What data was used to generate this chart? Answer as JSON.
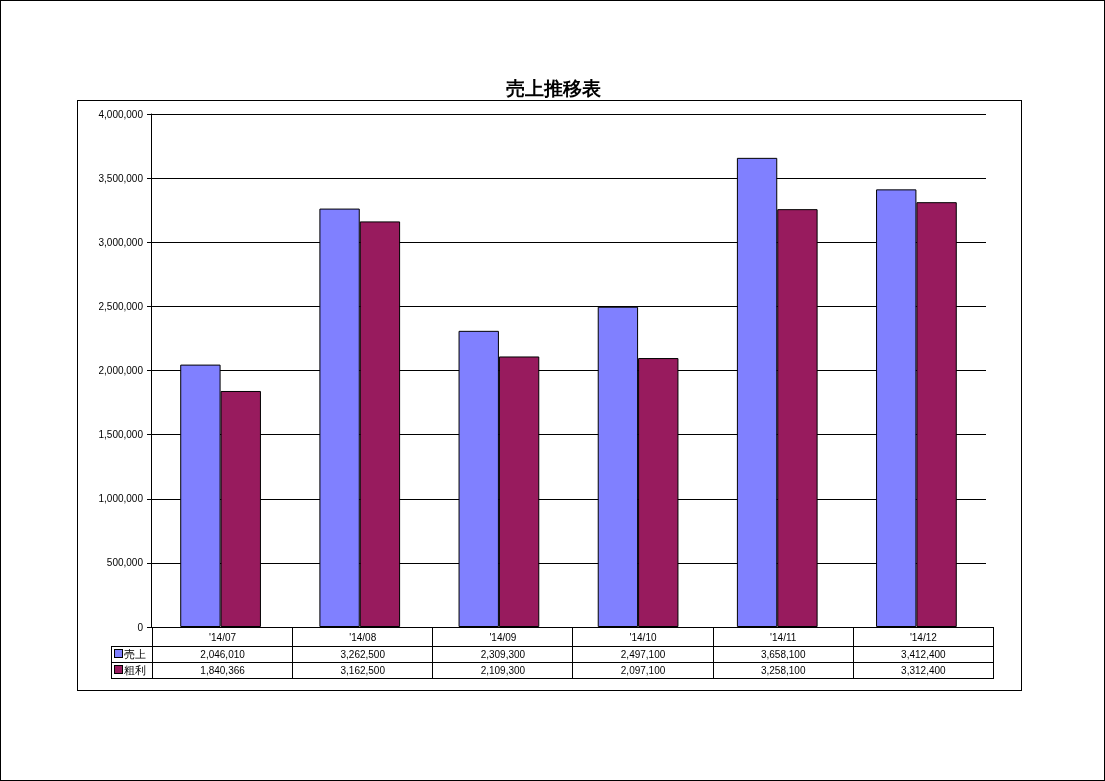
{
  "chart_data": {
    "type": "bar",
    "title": "売上推移表",
    "categories": [
      "'14/07",
      "'14/08",
      "'14/09",
      "'14/10",
      "'14/11",
      "'14/12"
    ],
    "series": [
      {
        "name": "売上",
        "color": "#8080ff",
        "values": [
          2046010,
          3262500,
          2309300,
          2497100,
          3658100,
          3412400
        ],
        "value_labels": [
          "2,046,010",
          "3,262,500",
          "2,309,300",
          "2,497,100",
          "3,658,100",
          "3,412,400"
        ]
      },
      {
        "name": "粗利",
        "color": "#981b5e",
        "values": [
          1840366,
          3162500,
          2109300,
          2097100,
          3258100,
          3312400
        ],
        "value_labels": [
          "1,840,366",
          "3,162,500",
          "2,109,300",
          "2,097,100",
          "3,258,100",
          "3,312,400"
        ]
      }
    ],
    "ylim": [
      0,
      4000000
    ],
    "yticks": [
      0,
      {
        "value": 500000,
        "label": "500,000"
      },
      {
        "value": 1000000,
        "label": "1,000,000"
      },
      {
        "value": 1500000,
        "label": "1,500,000"
      },
      {
        "value": 2000000,
        "label": "2,000,000"
      },
      {
        "value": 2500000,
        "label": "2,500,000"
      },
      {
        "value": 3000000,
        "label": "3,000,000"
      },
      {
        "value": 3500000,
        "label": "3,500,000"
      },
      {
        "value": 4000000,
        "label": "4,000,000"
      }
    ],
    "grid": "y",
    "legend": "bottom"
  }
}
